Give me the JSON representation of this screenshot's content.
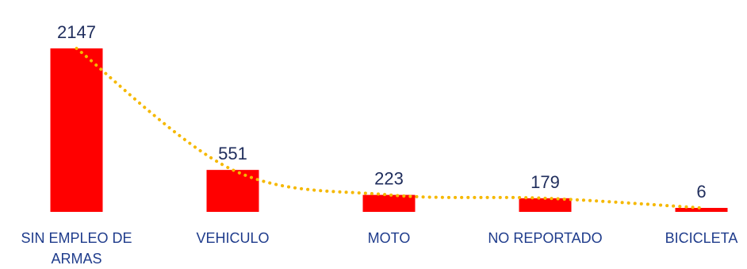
{
  "chart_data": {
    "type": "bar",
    "title": "",
    "xlabel": "",
    "ylabel": "",
    "categories": [
      [
        "SIN EMPLEO DE",
        "ARMAS"
      ],
      [
        "VEHICULO"
      ],
      [
        "MOTO"
      ],
      [
        "NO REPORTADO"
      ],
      [
        "BICICLETA"
      ]
    ],
    "values": [
      2147,
      551,
      223,
      179,
      6
    ],
    "ylim": [
      0,
      2147
    ],
    "grid": false,
    "legend": "none",
    "trendline": {
      "type": "dotted",
      "color": "#f5b800"
    },
    "colors": {
      "bar": "#ff0000",
      "value_label": "#1f2d5c",
      "category_label": "#1f3c8c"
    }
  }
}
